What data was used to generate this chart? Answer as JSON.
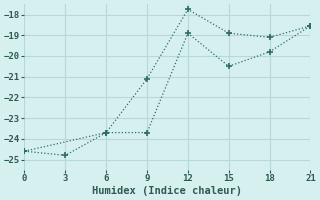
{
  "xlabel": "Humidex (Indice chaleur)",
  "background_color": "#d6f0ef",
  "grid_color": "#b8d8d5",
  "line_color": "#2e6b60",
  "line1_x": [
    0,
    3,
    6,
    9,
    12,
    15,
    18,
    21
  ],
  "line1_y": [
    -24.6,
    -24.8,
    -23.7,
    -21.1,
    -17.75,
    -18.9,
    -19.1,
    -18.55
  ],
  "line2_x": [
    0,
    6,
    9,
    12,
    15,
    18,
    21
  ],
  "line2_y": [
    -24.6,
    -23.7,
    -23.7,
    -18.9,
    -20.5,
    -19.8,
    -18.55
  ],
  "xlim": [
    0,
    21
  ],
  "ylim": [
    -25.5,
    -17.5
  ],
  "xticks": [
    0,
    3,
    6,
    9,
    12,
    15,
    18,
    21
  ],
  "yticks": [
    -25,
    -24,
    -23,
    -22,
    -21,
    -20,
    -19,
    -18
  ],
  "tick_fontsize": 6.5,
  "xlabel_fontsize": 7.5
}
